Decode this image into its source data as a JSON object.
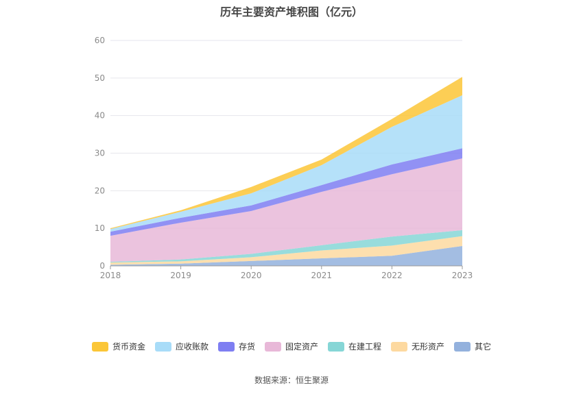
{
  "title": "历年主要资产堆积图（亿元）",
  "source": "数据来源：恒生聚源",
  "chart_data": {
    "type": "area",
    "stacked": true,
    "x": [
      "2018",
      "2019",
      "2020",
      "2021",
      "2022",
      "2023"
    ],
    "ylim": [
      0,
      60
    ],
    "yticks": [
      0,
      10,
      20,
      30,
      40,
      50,
      60
    ],
    "grid": true,
    "legend_position": "bottom",
    "series": [
      {
        "name": "其它",
        "color": "#93b1dd",
        "values": [
          0.3,
          0.6,
          1.3,
          2.0,
          2.7,
          5.3
        ]
      },
      {
        "name": "无形资产",
        "color": "#fdd9a0",
        "values": [
          0.6,
          0.6,
          1.0,
          2.1,
          2.7,
          2.6
        ]
      },
      {
        "name": "在建工程",
        "color": "#86d6d6",
        "values": [
          0.2,
          0.5,
          0.9,
          1.4,
          2.4,
          1.6
        ]
      },
      {
        "name": "固定资产",
        "color": "#e8b8d8",
        "values": [
          6.9,
          9.8,
          11.4,
          14.2,
          16.6,
          19.1
        ]
      },
      {
        "name": "存货",
        "color": "#7e7ef2",
        "values": [
          1.1,
          1.3,
          1.5,
          1.8,
          2.6,
          2.7
        ]
      },
      {
        "name": "应收账款",
        "color": "#a8dcf8",
        "values": [
          0.7,
          1.6,
          3.2,
          5.3,
          10.0,
          14.1
        ]
      },
      {
        "name": "货币资金",
        "color": "#fbc637",
        "values": [
          0.2,
          0.4,
          1.7,
          1.5,
          2.1,
          4.9
        ]
      }
    ]
  }
}
